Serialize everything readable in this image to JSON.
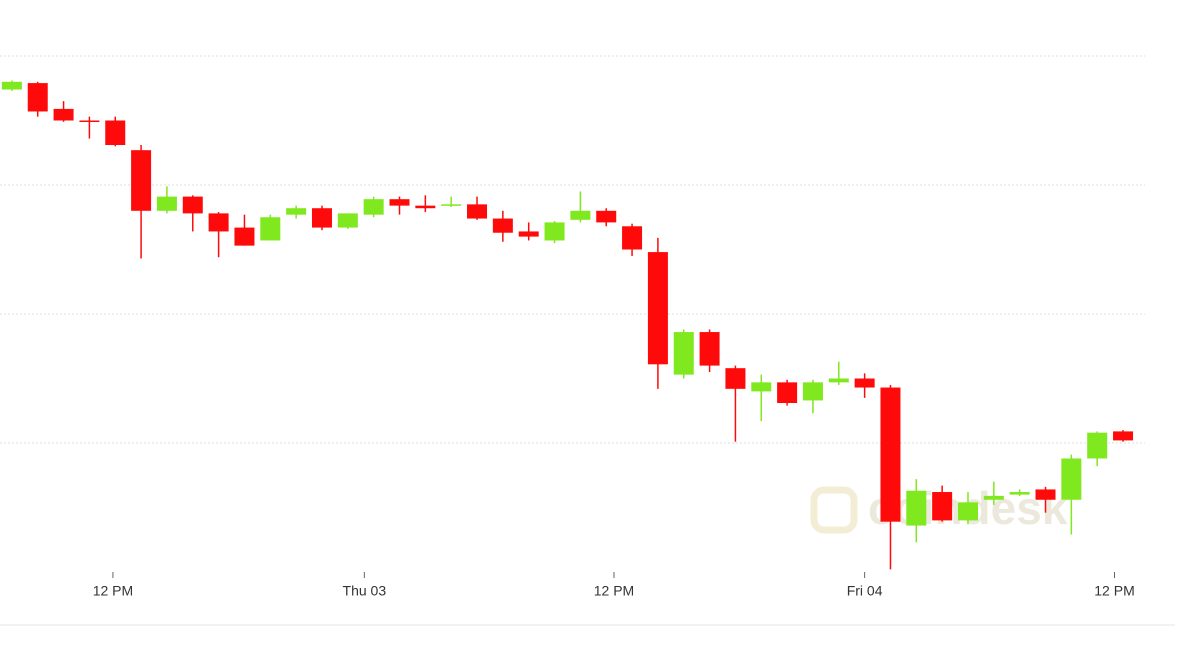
{
  "chart_data": {
    "type": "candlestick",
    "watermark": "coindesk",
    "xlim": [
      -0.46,
      43.85
    ],
    "xticks": [
      {
        "value": 3.91,
        "label": "12 PM"
      },
      {
        "value": 13.64,
        "label": "Thu 03"
      },
      {
        "value": 23.3,
        "label": "12 PM"
      },
      {
        "value": 33.0,
        "label": "Fri 04"
      },
      {
        "value": 42.67,
        "label": "12 PM"
      }
    ],
    "ylim": [
      0,
      4
    ],
    "yticks": [
      1,
      2,
      3,
      4
    ],
    "grid": true,
    "up_color": "#7fe81e",
    "down_color": "#ff0a0a",
    "open": [
      3.74,
      3.79,
      3.59,
      3.5,
      3.5,
      3.27,
      2.8,
      2.91,
      2.78,
      2.67,
      2.57,
      2.77,
      2.82,
      2.67,
      2.77,
      2.89,
      2.84,
      2.84,
      2.85,
      2.74,
      2.64,
      2.57,
      2.73,
      2.8,
      2.68,
      2.48,
      1.53,
      1.86,
      1.58,
      1.4,
      1.47,
      1.33,
      1.47,
      1.5,
      1.43,
      0.36,
      0.62,
      0.4,
      0.56,
      0.6,
      0.64,
      0.56,
      0.88,
      1.09
    ],
    "high": [
      3.81,
      3.8,
      3.65,
      3.53,
      3.53,
      3.31,
      2.99,
      2.92,
      2.79,
      2.77,
      2.77,
      2.84,
      2.84,
      2.78,
      2.91,
      2.91,
      2.92,
      2.91,
      2.91,
      2.8,
      2.71,
      2.72,
      2.95,
      2.82,
      2.7,
      2.59,
      1.88,
      1.88,
      1.6,
      1.53,
      1.49,
      1.49,
      1.63,
      1.54,
      1.45,
      0.72,
      0.67,
      0.62,
      0.7,
      0.64,
      0.66,
      0.91,
      1.09,
      1.1
    ],
    "low": [
      3.73,
      3.53,
      3.49,
      3.36,
      3.3,
      2.43,
      2.78,
      2.64,
      2.44,
      2.53,
      2.57,
      2.74,
      2.65,
      2.66,
      2.75,
      2.77,
      2.79,
      2.83,
      2.73,
      2.56,
      2.57,
      2.55,
      2.71,
      2.68,
      2.45,
      1.42,
      1.5,
      1.55,
      1.01,
      1.17,
      1.29,
      1.23,
      1.45,
      1.35,
      0.02,
      0.23,
      0.39,
      0.37,
      0.52,
      0.59,
      0.46,
      0.29,
      0.82,
      1.01
    ],
    "close": [
      3.8,
      3.57,
      3.5,
      3.49,
      3.31,
      2.8,
      2.91,
      2.78,
      2.64,
      2.53,
      2.75,
      2.82,
      2.67,
      2.78,
      2.89,
      2.84,
      2.82,
      2.85,
      2.74,
      2.63,
      2.6,
      2.71,
      2.8,
      2.71,
      2.5,
      1.61,
      1.86,
      1.6,
      1.42,
      1.47,
      1.31,
      1.47,
      1.5,
      1.43,
      0.39,
      0.63,
      0.4,
      0.54,
      0.59,
      0.62,
      0.56,
      0.88,
      1.08,
      1.02
    ]
  }
}
